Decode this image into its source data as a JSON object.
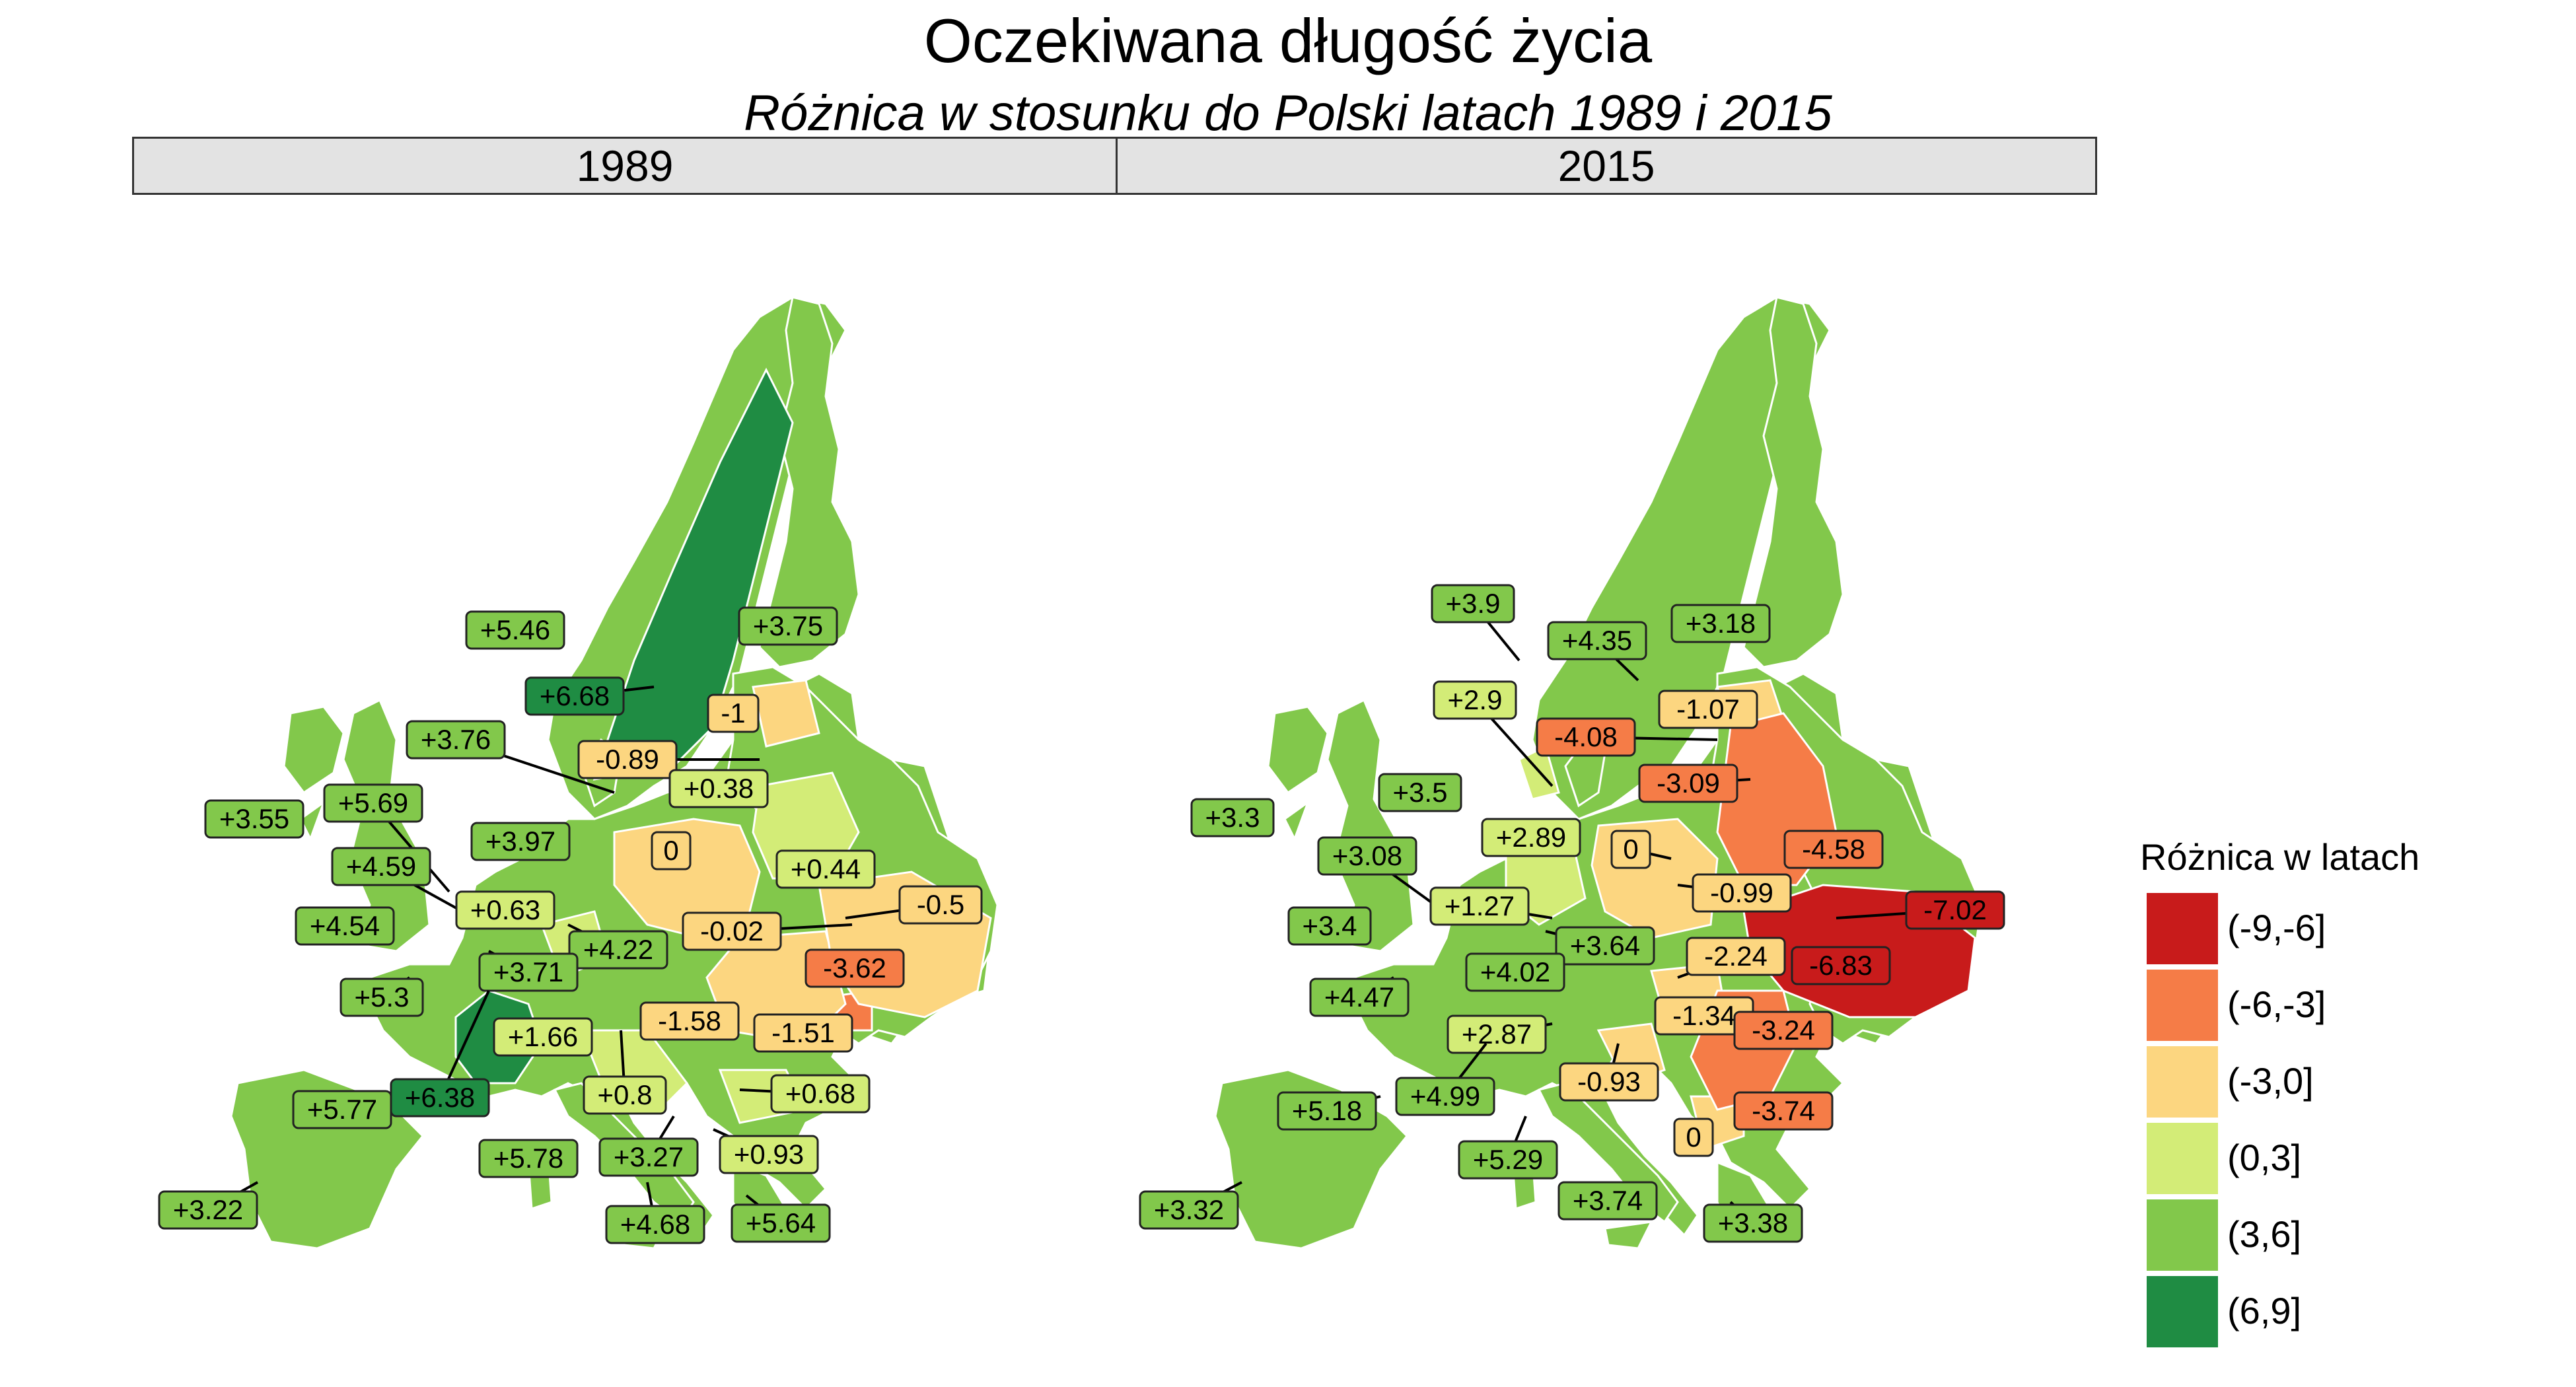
{
  "title": "Oczekiwana długość życia",
  "subtitle": "Różnica w stosunku do Polski latach 1989 i 2015",
  "panels": [
    "1989",
    "2015"
  ],
  "legend": {
    "title": "Różnica w latach",
    "items": [
      {
        "label": "(-9,-6]",
        "color": "#c81b1b"
      },
      {
        "label": "(-6,-3]",
        "color": "#f57c47"
      },
      {
        "label": "(-3,0]",
        "color": "#fcd680"
      },
      {
        "label": "(0,3]",
        "color": "#d3ec77"
      },
      {
        "label": "(3,6]",
        "color": "#82c84b"
      },
      {
        "label": "(6,9]",
        "color": "#1f8c43"
      }
    ]
  },
  "chart_data": {
    "type": "choropleth",
    "panels": [
      {
        "name": "1989",
        "labels": [
          "+5.46",
          "+3.75",
          "+6.68",
          "-1",
          "+3.76",
          "-0.89",
          "+0.38",
          "+3.55",
          "+5.69",
          "+3.97",
          "0",
          "+0.44",
          "+4.59",
          "+0.63",
          "+4.54",
          "+4.22",
          "-0.02",
          "-0.5",
          "+3.71",
          "-3.62",
          "+5.3",
          "+1.66",
          "-1.58",
          "-1.51",
          "+5.77",
          "+6.38",
          "+0.8",
          "+0.68",
          "+5.78",
          "+3.27",
          "+0.93",
          "+3.22",
          "+4.68",
          "+5.64"
        ]
      },
      {
        "name": "2015",
        "labels": [
          "+3.9",
          "+4.35",
          "+3.18",
          "+2.9",
          "-4.08",
          "-1.07",
          "-3.09",
          "+3.5",
          "+3.3",
          "+2.89",
          "0",
          "-4.58",
          "+3.08",
          "-0.99",
          "+1.27",
          "-7.02",
          "+3.4",
          "+3.64",
          "-2.24",
          "-6.83",
          "+4.02",
          "+4.47",
          "-1.34",
          "+2.87",
          "-3.24",
          "-0.93",
          "+5.18",
          "+4.99",
          "-3.74",
          "0",
          "+5.29",
          "+3.74",
          "+3.32",
          "+3.38"
        ]
      }
    ]
  }
}
